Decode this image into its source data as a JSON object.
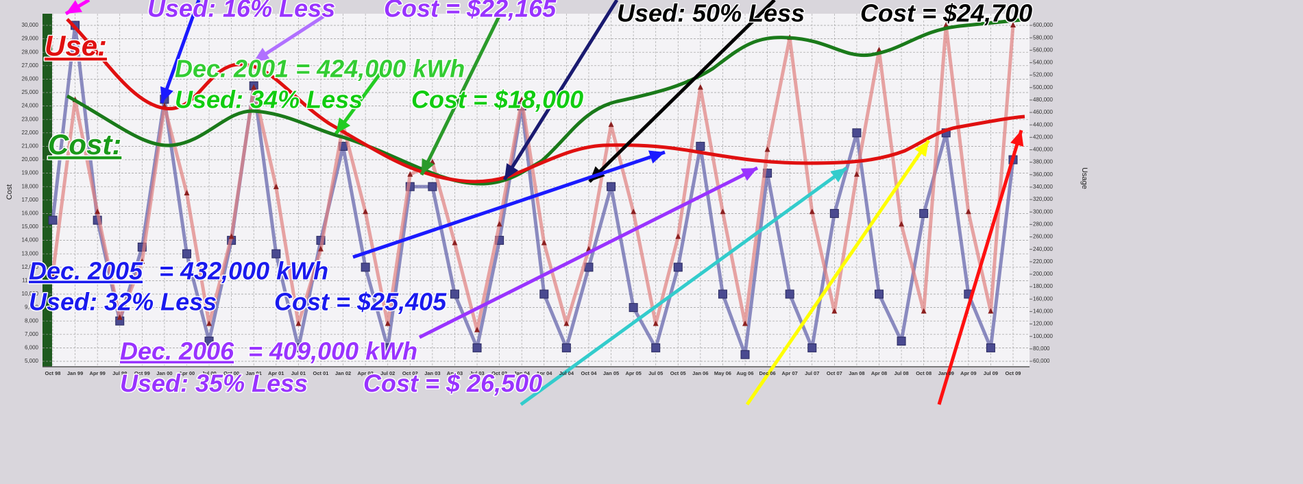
{
  "chart_data": {
    "type": "line",
    "ylabel": "Cost",
    "y2label": "Usage",
    "categories": [
      "Oct 98",
      "Jan 99",
      "Apr 99",
      "Jul 99",
      "Oct 99",
      "Jan 00",
      "Apr 00",
      "Jul 00",
      "Oct 00",
      "Jan 01",
      "Apr 01",
      "Jul 01",
      "Oct 01",
      "Jan 02",
      "Apr 02",
      "Jul 02",
      "Oct 02",
      "Jan 03",
      "Apr 03",
      "Jul 03",
      "Oct 03",
      "Jan 04",
      "Apr 04",
      "Jul 04",
      "Oct 04",
      "Jan 05",
      "Apr 05",
      "Jul 05",
      "Oct 05",
      "Jan 06",
      "May 06",
      "Aug 06",
      "Dec 06",
      "Apr 07",
      "Jul 07",
      "Oct 07",
      "Jan 08",
      "Apr 08",
      "Jul 08",
      "Oct 08",
      "Jan 09",
      "Apr 09",
      "Jul 09",
      "Oct 09"
    ],
    "series": [
      {
        "color": "#5c5ca8",
        "marker": "square",
        "values": [
          15500,
          30000,
          15500,
          8000,
          13500,
          24500,
          13000,
          6500,
          14000,
          25500,
          13000,
          6000,
          14000,
          21000,
          12000,
          6000,
          18000,
          18000,
          10000,
          6000,
          14000,
          24000,
          10000,
          6000,
          12000,
          18000,
          9000,
          6000,
          12000,
          21000,
          10000,
          5500,
          19000,
          10000,
          6000,
          16000,
          22000,
          10000,
          6500,
          16000,
          22000,
          10000,
          6000,
          20000
        ]
      },
      {
        "color": "#e07f7f",
        "marker": "triangle",
        "axis": "y2",
        "values": [
          200000,
          480000,
          300000,
          130000,
          220000,
          470000,
          330000,
          120000,
          260000,
          500000,
          340000,
          120000,
          240000,
          440000,
          300000,
          120000,
          360000,
          380000,
          250000,
          110000,
          280000,
          480000,
          250000,
          120000,
          240000,
          440000,
          300000,
          120000,
          260000,
          500000,
          300000,
          120000,
          400000,
          580000,
          300000,
          140000,
          360000,
          560000,
          280000,
          140000,
          600000,
          300000,
          140000,
          600000
        ]
      }
    ],
    "ylim": [
      5000,
      30000
    ],
    "yticks": [
      {
        "value": 5000,
        "label": "5,000"
      },
      {
        "value": 6000,
        "label": "6,000"
      },
      {
        "value": 7000,
        "label": "7,000"
      },
      {
        "value": 8000,
        "label": "8,000"
      },
      {
        "value": 9000,
        "label": "9,000"
      },
      {
        "value": 10000,
        "label": "10,000"
      },
      {
        "value": 11000,
        "label": "11,000"
      },
      {
        "value": 12000,
        "label": "12,000"
      },
      {
        "value": 13000,
        "label": "13,000"
      },
      {
        "value": 14000,
        "label": "14,000"
      },
      {
        "value": 15000,
        "label": "15,000"
      },
      {
        "value": 16000,
        "label": "16,000"
      },
      {
        "value": 17000,
        "label": "17,000"
      },
      {
        "value": 18000,
        "label": "18,000"
      },
      {
        "value": 19000,
        "label": "19,000"
      },
      {
        "value": 20000,
        "label": "20,000"
      },
      {
        "value": 21000,
        "label": "21,000"
      },
      {
        "value": 22000,
        "label": "22,000"
      },
      {
        "value": 23000,
        "label": "23,000"
      },
      {
        "value": 24000,
        "label": "24,000"
      },
      {
        "value": 25000,
        "label": "25,000"
      },
      {
        "value": 26000,
        "label": "26,000"
      },
      {
        "value": 27000,
        "label": "27,000"
      },
      {
        "value": 28000,
        "label": "28,000"
      },
      {
        "value": 29000,
        "label": "29,000"
      },
      {
        "value": 30000,
        "label": "30,000"
      }
    ],
    "y2lim": [
      60000,
      600000
    ],
    "y2ticks": [
      {
        "value": 60000,
        "label": "60,000"
      },
      {
        "value": 80000,
        "label": "80,000"
      },
      {
        "value": 100000,
        "label": "100,000"
      },
      {
        "value": 120000,
        "label": "120,000"
      },
      {
        "value": 140000,
        "label": "140,000"
      },
      {
        "value": 160000,
        "label": "160,000"
      },
      {
        "value": 180000,
        "label": "180,000"
      },
      {
        "value": 200000,
        "label": "200,000"
      },
      {
        "value": 220000,
        "label": "220,000"
      },
      {
        "value": 240000,
        "label": "240,000"
      },
      {
        "value": 260000,
        "label": "260,000"
      },
      {
        "value": 280000,
        "label": "280,000"
      },
      {
        "value": 300000,
        "label": "300,000"
      },
      {
        "value": 320000,
        "label": "320,000"
      },
      {
        "value": 340000,
        "label": "340,000"
      },
      {
        "value": 360000,
        "label": "360,000"
      },
      {
        "value": 380000,
        "label": "380,000"
      },
      {
        "value": 400000,
        "label": "400,000"
      },
      {
        "value": 420000,
        "label": "420,000"
      },
      {
        "value": 440000,
        "label": "440,000"
      },
      {
        "value": 460000,
        "label": "460,000"
      },
      {
        "value": 480000,
        "label": "480,000"
      },
      {
        "value": 500000,
        "label": "500,000"
      },
      {
        "value": 520000,
        "label": "520,000"
      },
      {
        "value": 540000,
        "label": "540,000"
      },
      {
        "value": 560000,
        "label": "560,000"
      },
      {
        "value": 580000,
        "label": "580,000"
      },
      {
        "value": 600000,
        "label": "600,000"
      }
    ],
    "grid": true,
    "annotations": [
      "Use:",
      "Cost:",
      "Used: 16% Less",
      "Cost = $22,165",
      "Dec. 2001 = 424,000 kWh",
      "Used: 34% Less",
      "Cost = $18,000",
      "Used: 50% Less",
      "Cost = $24,700",
      "Dec. 2005",
      "= 432,000 kWh",
      "Used: 32% Less",
      "Cost = $25,405",
      "Dec. 2006",
      "= 409,000 kWh",
      "Used: 35% Less",
      "Cost = $ 26,500"
    ]
  }
}
